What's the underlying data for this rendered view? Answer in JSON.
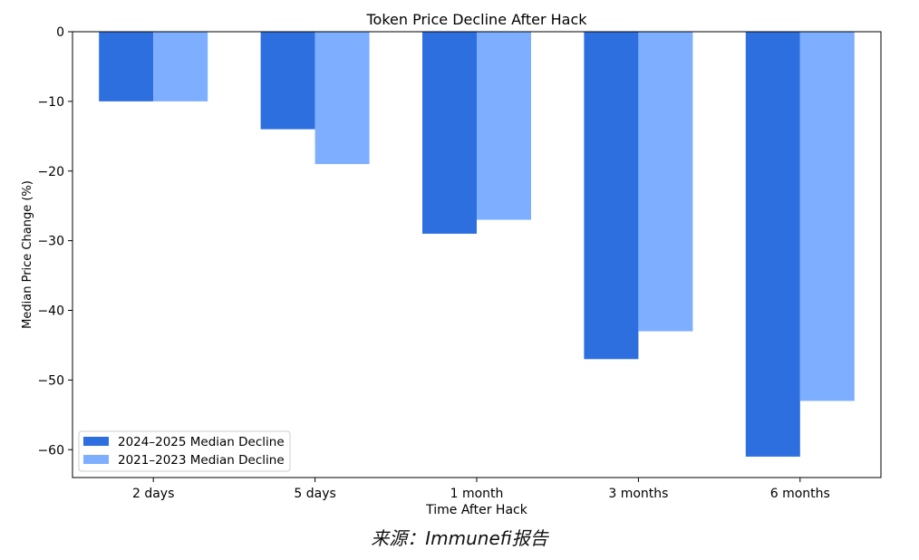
{
  "chart_data": {
    "type": "bar",
    "title": "Token Price Decline After Hack",
    "xlabel": "Time After Hack",
    "ylabel": "Median Price Change (%)",
    "categories": [
      "2 days",
      "5 days",
      "1 month",
      "3 months",
      "6 months"
    ],
    "series": [
      {
        "name": "2024–2025 Median Decline",
        "color": "#2e6fe0",
        "values": [
          -10,
          -14,
          -29,
          -47,
          -61
        ]
      },
      {
        "name": "2021–2023 Median Decline",
        "color": "#7eaeff",
        "values": [
          -10,
          -19,
          -27,
          -43,
          -53
        ]
      }
    ],
    "ylim": [
      -64,
      0
    ],
    "yticks": [
      0,
      -10,
      -20,
      -30,
      -40,
      -50,
      -60
    ],
    "ytick_labels": [
      "0",
      "−10",
      "−20",
      "−30",
      "−40",
      "−50",
      "−60"
    ],
    "grid": false,
    "legend_position": "lower-left"
  },
  "caption": "来源：Immunefi报告"
}
